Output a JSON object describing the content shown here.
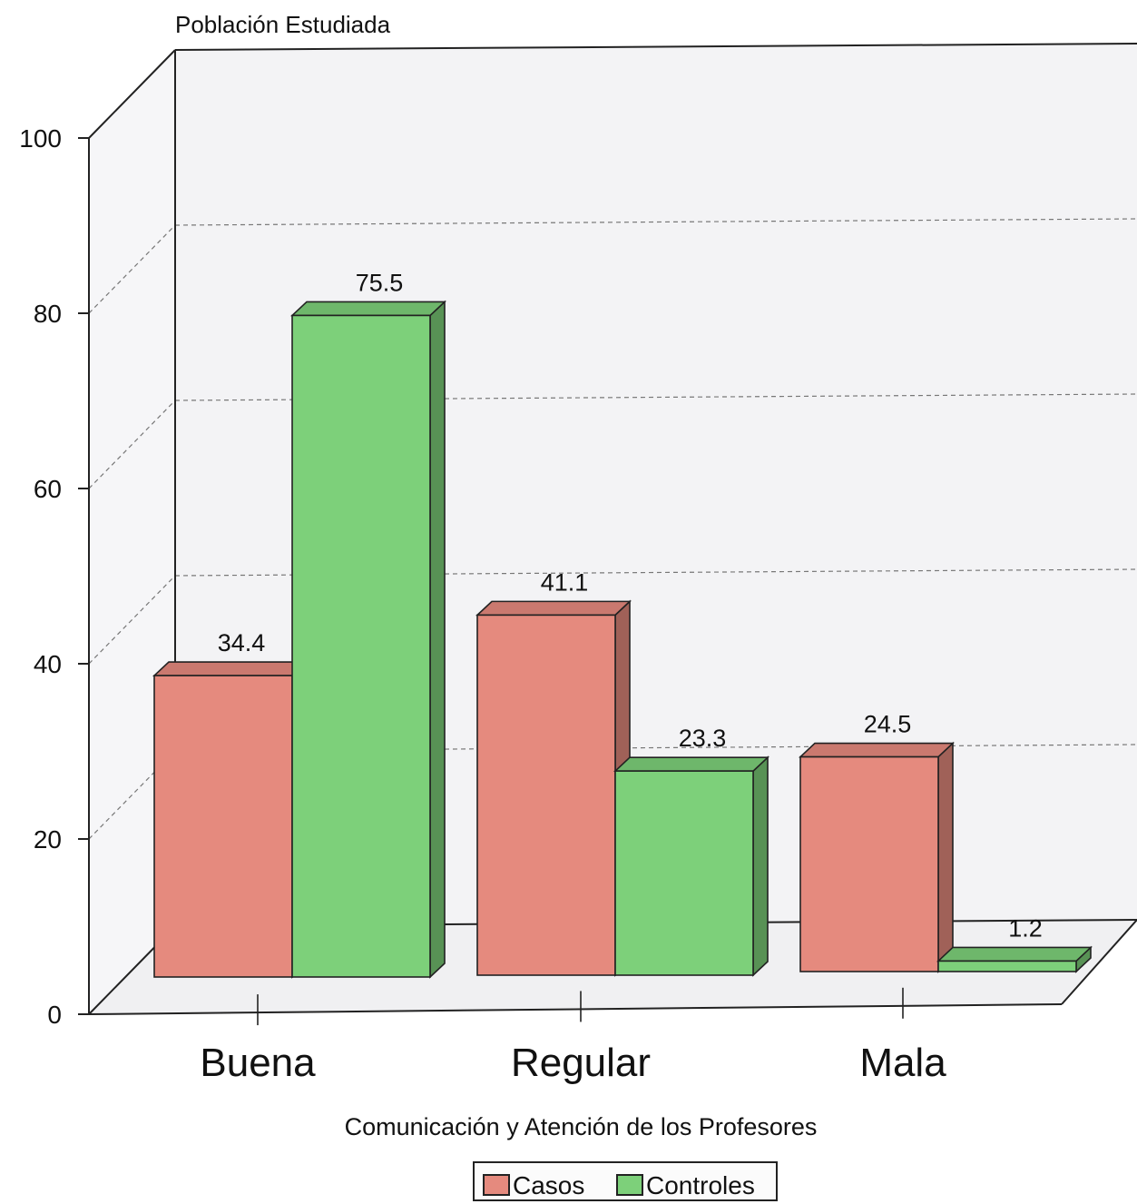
{
  "chart_data": {
    "type": "bar",
    "title": "",
    "ylabel": "Población Estudiada",
    "xlabel": "Comunicación y Atención de los Profesores",
    "ylim": [
      0,
      100
    ],
    "yticks": [
      0,
      20,
      40,
      60,
      80,
      100
    ],
    "grid": true,
    "legend_position": "bottom",
    "categories": [
      "Buena",
      "Regular",
      "Mala"
    ],
    "series": [
      {
        "name": "Casos",
        "values": [
          34.4,
          41.1,
          24.5
        ],
        "color": "#e58a7e"
      },
      {
        "name": "Controles",
        "values": [
          75.5,
          23.3,
          1.2
        ],
        "color": "#7dd07a"
      }
    ]
  }
}
